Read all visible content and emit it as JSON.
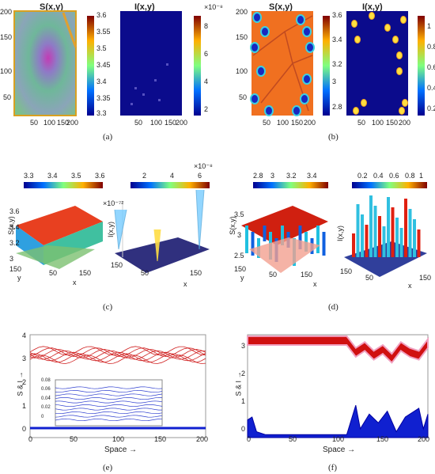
{
  "panels": {
    "a": {
      "label": "(a)",
      "S_title": "S(x,y)",
      "I_title": "I(x,y)",
      "S_cbar_ticks": [
        "3.6",
        "3.55",
        "3.5",
        "3.45",
        "3.4",
        "3.35",
        "3.3"
      ],
      "I_cbar_exp": "×10⁻⁸",
      "I_cbar_ticks": [
        "8",
        "6",
        "4",
        "2"
      ],
      "yticks": [
        "200",
        "150",
        "100",
        "50"
      ],
      "xticks": [
        "50",
        "100",
        "150",
        "200"
      ]
    },
    "b": {
      "label": "(b)",
      "S_title": "S(x,y)",
      "I_title": "I(x,y)",
      "S_cbar_ticks": [
        "3.6",
        "3.4",
        "3.2",
        "3",
        "2.8"
      ],
      "I_cbar_ticks": [
        "1",
        "0.8",
        "0.6",
        "0.4",
        "0.2"
      ],
      "yticks": [
        "200",
        "150",
        "100",
        "50"
      ],
      "xticks": [
        "50",
        "100",
        "150",
        "200"
      ]
    },
    "c": {
      "label": "(c)",
      "S_cbar_ticks": [
        "3.3",
        "3.4",
        "3.5",
        "3.6"
      ],
      "I_cbar_ticks": [
        "2",
        "4",
        "6"
      ],
      "I_cbar_exp": "×10⁻⁸",
      "S_zlabel": "S(x,y)",
      "S_zticks": [
        "3.6",
        "3.4",
        "3.2",
        "3"
      ],
      "I_zlabel": "I(x,y)",
      "I_zexp": "×10⁻⁷²",
      "x_label": "x",
      "y_label": "y",
      "xticks": [
        "50",
        "150"
      ],
      "yticks": [
        "150",
        "50"
      ]
    },
    "d": {
      "label": "(d)",
      "S_cbar_ticks": [
        "2.8",
        "3",
        "3.2",
        "3.4"
      ],
      "I_cbar_ticks": [
        "0.2",
        "0.4",
        "0.6",
        "0.8",
        "1"
      ],
      "S_zlabel": "S(x,y)",
      "S_zticks": [
        "3.5",
        "3",
        "2.5"
      ],
      "I_zlabel": "I(x,y)",
      "x_label": "x",
      "y_label": "y",
      "xticks": [
        "50",
        "150"
      ],
      "yticks": [
        "150",
        "50"
      ]
    },
    "e": {
      "label": "(e)",
      "ylabel": "S & I →",
      "xlabel": "Space →",
      "yticks": [
        "4",
        "3",
        "2",
        "1",
        "0"
      ],
      "xticks": [
        "0",
        "50",
        "100",
        "150",
        "200"
      ],
      "inset_yticks": [
        "0.08",
        "0.06",
        "0.04",
        "0.02",
        "0"
      ],
      "inset_ylabel": "I"
    },
    "f": {
      "label": "(f)",
      "ylabel": "S & I →",
      "xlabel": "Space →",
      "yticks": [
        "3",
        "2",
        "1",
        "0"
      ],
      "xticks": [
        "0",
        "50",
        "100",
        "150",
        "200"
      ]
    }
  },
  "chart_data": [
    {
      "type": "heatmap",
      "panel": "a",
      "title": "S(x,y)",
      "xlim": [
        0,
        200
      ],
      "ylim": [
        0,
        200
      ],
      "colorbar": [
        3.3,
        3.6
      ]
    },
    {
      "type": "heatmap",
      "panel": "a",
      "title": "I(x,y)",
      "xlim": [
        0,
        200
      ],
      "ylim": [
        0,
        200
      ],
      "colorbar": [
        2e-08,
        8e-08
      ]
    },
    {
      "type": "heatmap",
      "panel": "b",
      "title": "S(x,y)",
      "xlim": [
        0,
        200
      ],
      "ylim": [
        0,
        200
      ],
      "colorbar": [
        2.8,
        3.6
      ]
    },
    {
      "type": "heatmap",
      "panel": "b",
      "title": "I(x,y)",
      "xlim": [
        0,
        200
      ],
      "ylim": [
        0,
        200
      ],
      "colorbar": [
        0.2,
        1
      ]
    },
    {
      "type": "line",
      "panel": "e",
      "xlabel": "Space →",
      "ylabel": "S & I →",
      "xlim": [
        0,
        200
      ],
      "ylim": [
        0,
        4.3
      ],
      "series": [
        {
          "values": [
            3.5,
            3.3,
            3.6,
            3.4,
            3.5,
            3.4,
            3.6,
            3.3,
            3.5
          ]
        },
        {
          "values": [
            0.02,
            0.02,
            0.02,
            0.02,
            0.02
          ]
        }
      ]
    },
    {
      "type": "area",
      "panel": "f",
      "xlabel": "Space →",
      "ylabel": "S & I →",
      "xlim": [
        0,
        200
      ],
      "ylim": [
        0,
        3.5
      ],
      "series": [
        {
          "x": [
            0,
            110,
            120,
            130,
            140,
            150,
            160,
            170,
            180,
            190,
            200
          ],
          "values": [
            3.3,
            3.3,
            2.9,
            3.1,
            2.8,
            3.0,
            2.7,
            3.1,
            2.9,
            2.8,
            3.2
          ]
        },
        {
          "x": [
            0,
            5,
            10,
            20,
            110,
            120,
            125,
            135,
            145,
            155,
            165,
            175,
            190,
            195,
            200
          ],
          "values": [
            0.6,
            0.7,
            0.2,
            0.1,
            0.1,
            1.1,
            0.3,
            0.8,
            0.5,
            0.9,
            0.2,
            0.7,
            1.0,
            0.3,
            0.8
          ]
        }
      ]
    }
  ]
}
